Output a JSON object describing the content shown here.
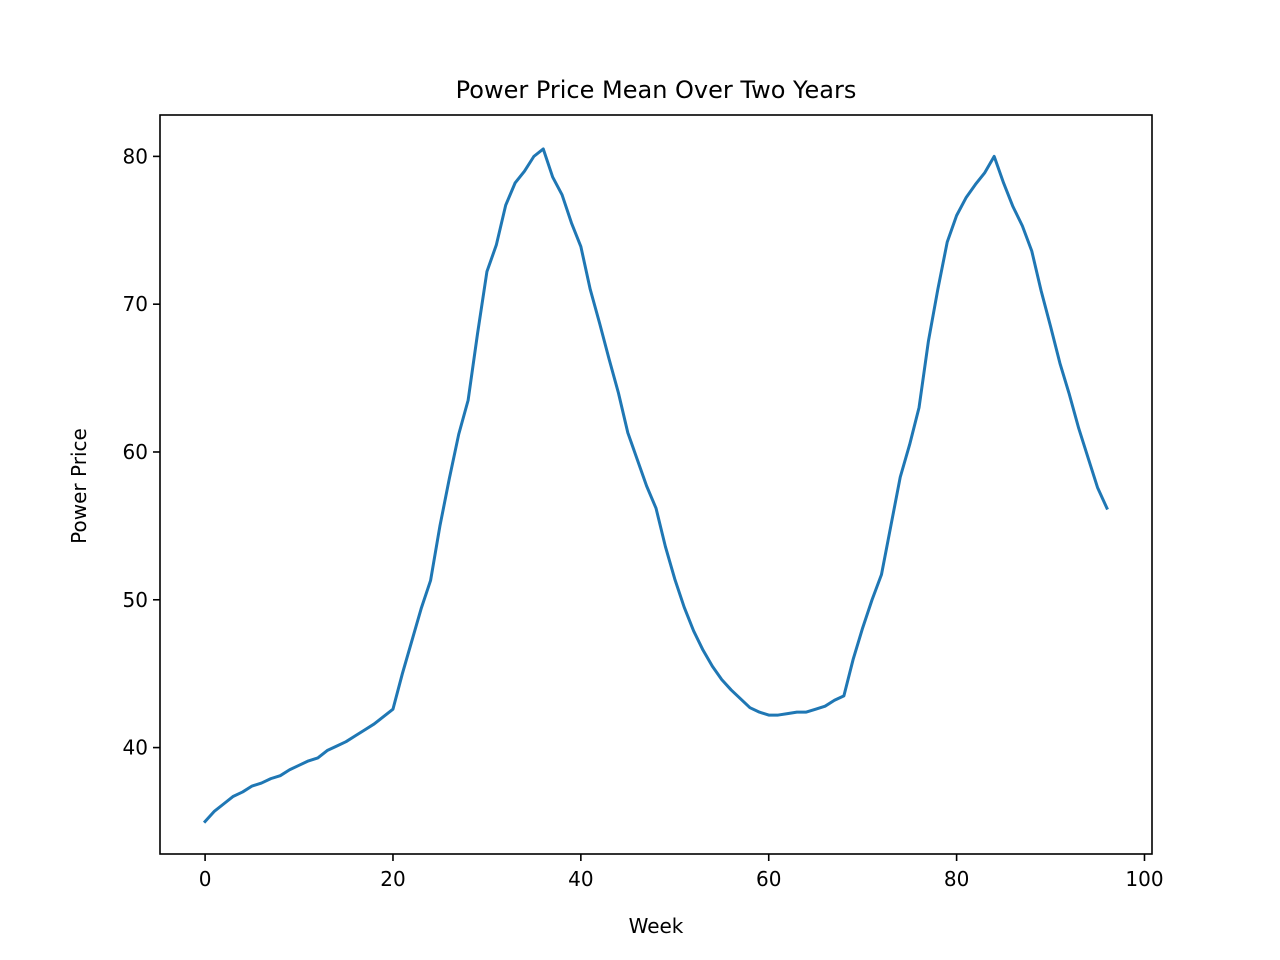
{
  "chart_data": {
    "type": "line",
    "title": "Power Price Mean Over Two Years",
    "xlabel": "Week",
    "ylabel": "Power Price",
    "xlim": [
      -4.8,
      100.8
    ],
    "ylim": [
      32.8,
      82.8
    ],
    "xticks": [
      0,
      20,
      40,
      60,
      80,
      100
    ],
    "yticks": [
      40,
      50,
      60,
      70,
      80
    ],
    "grid": false,
    "legend": "none",
    "series": [
      {
        "color": "#1f77b4",
        "x": [
          0,
          1,
          2,
          3,
          4,
          5,
          6,
          7,
          8,
          9,
          10,
          11,
          12,
          13,
          14,
          15,
          16,
          17,
          18,
          19,
          20,
          21,
          22,
          23,
          24,
          25,
          26,
          27,
          28,
          29,
          30,
          31,
          32,
          33,
          34,
          35,
          36,
          37,
          38,
          39,
          40,
          41,
          42,
          43,
          44,
          45,
          46,
          47,
          48,
          49,
          50,
          51,
          52,
          53,
          54,
          55,
          56,
          57,
          58,
          59,
          60,
          61,
          62,
          63,
          64,
          65,
          66,
          67,
          68,
          69,
          70,
          71,
          72,
          73,
          74,
          75,
          76,
          77,
          78,
          79,
          80,
          81,
          82,
          83,
          84,
          85,
          86,
          87,
          88,
          89,
          90,
          91,
          92,
          93,
          94,
          95,
          96
        ],
        "values": [
          35.0,
          35.7,
          36.2,
          36.7,
          37.0,
          37.4,
          37.6,
          37.9,
          38.1,
          38.5,
          38.8,
          39.1,
          39.3,
          39.8,
          40.1,
          40.4,
          40.8,
          41.2,
          41.6,
          42.1,
          42.6,
          45.0,
          47.2,
          49.4,
          51.3,
          55.0,
          58.2,
          61.2,
          63.5,
          68.0,
          72.2,
          74.0,
          76.7,
          78.2,
          79.0,
          80.0,
          80.5,
          78.6,
          77.4,
          75.5,
          73.9,
          71.0,
          68.7,
          66.3,
          64.0,
          61.3,
          59.5,
          57.7,
          56.2,
          53.6,
          51.4,
          49.5,
          47.9,
          46.6,
          45.5,
          44.6,
          43.9,
          43.3,
          42.7,
          42.4,
          42.2,
          42.2,
          42.3,
          42.4,
          42.4,
          42.6,
          42.8,
          43.2,
          43.5,
          46.0,
          48.1,
          50.0,
          51.7,
          55.0,
          58.3,
          60.5,
          63.0,
          67.5,
          71.0,
          74.2,
          76.0,
          77.2,
          78.1,
          78.9,
          80.0,
          78.2,
          76.6,
          75.3,
          73.6,
          70.9,
          68.5,
          66.0,
          63.9,
          61.6,
          59.6,
          57.6,
          56.2
        ]
      }
    ]
  }
}
